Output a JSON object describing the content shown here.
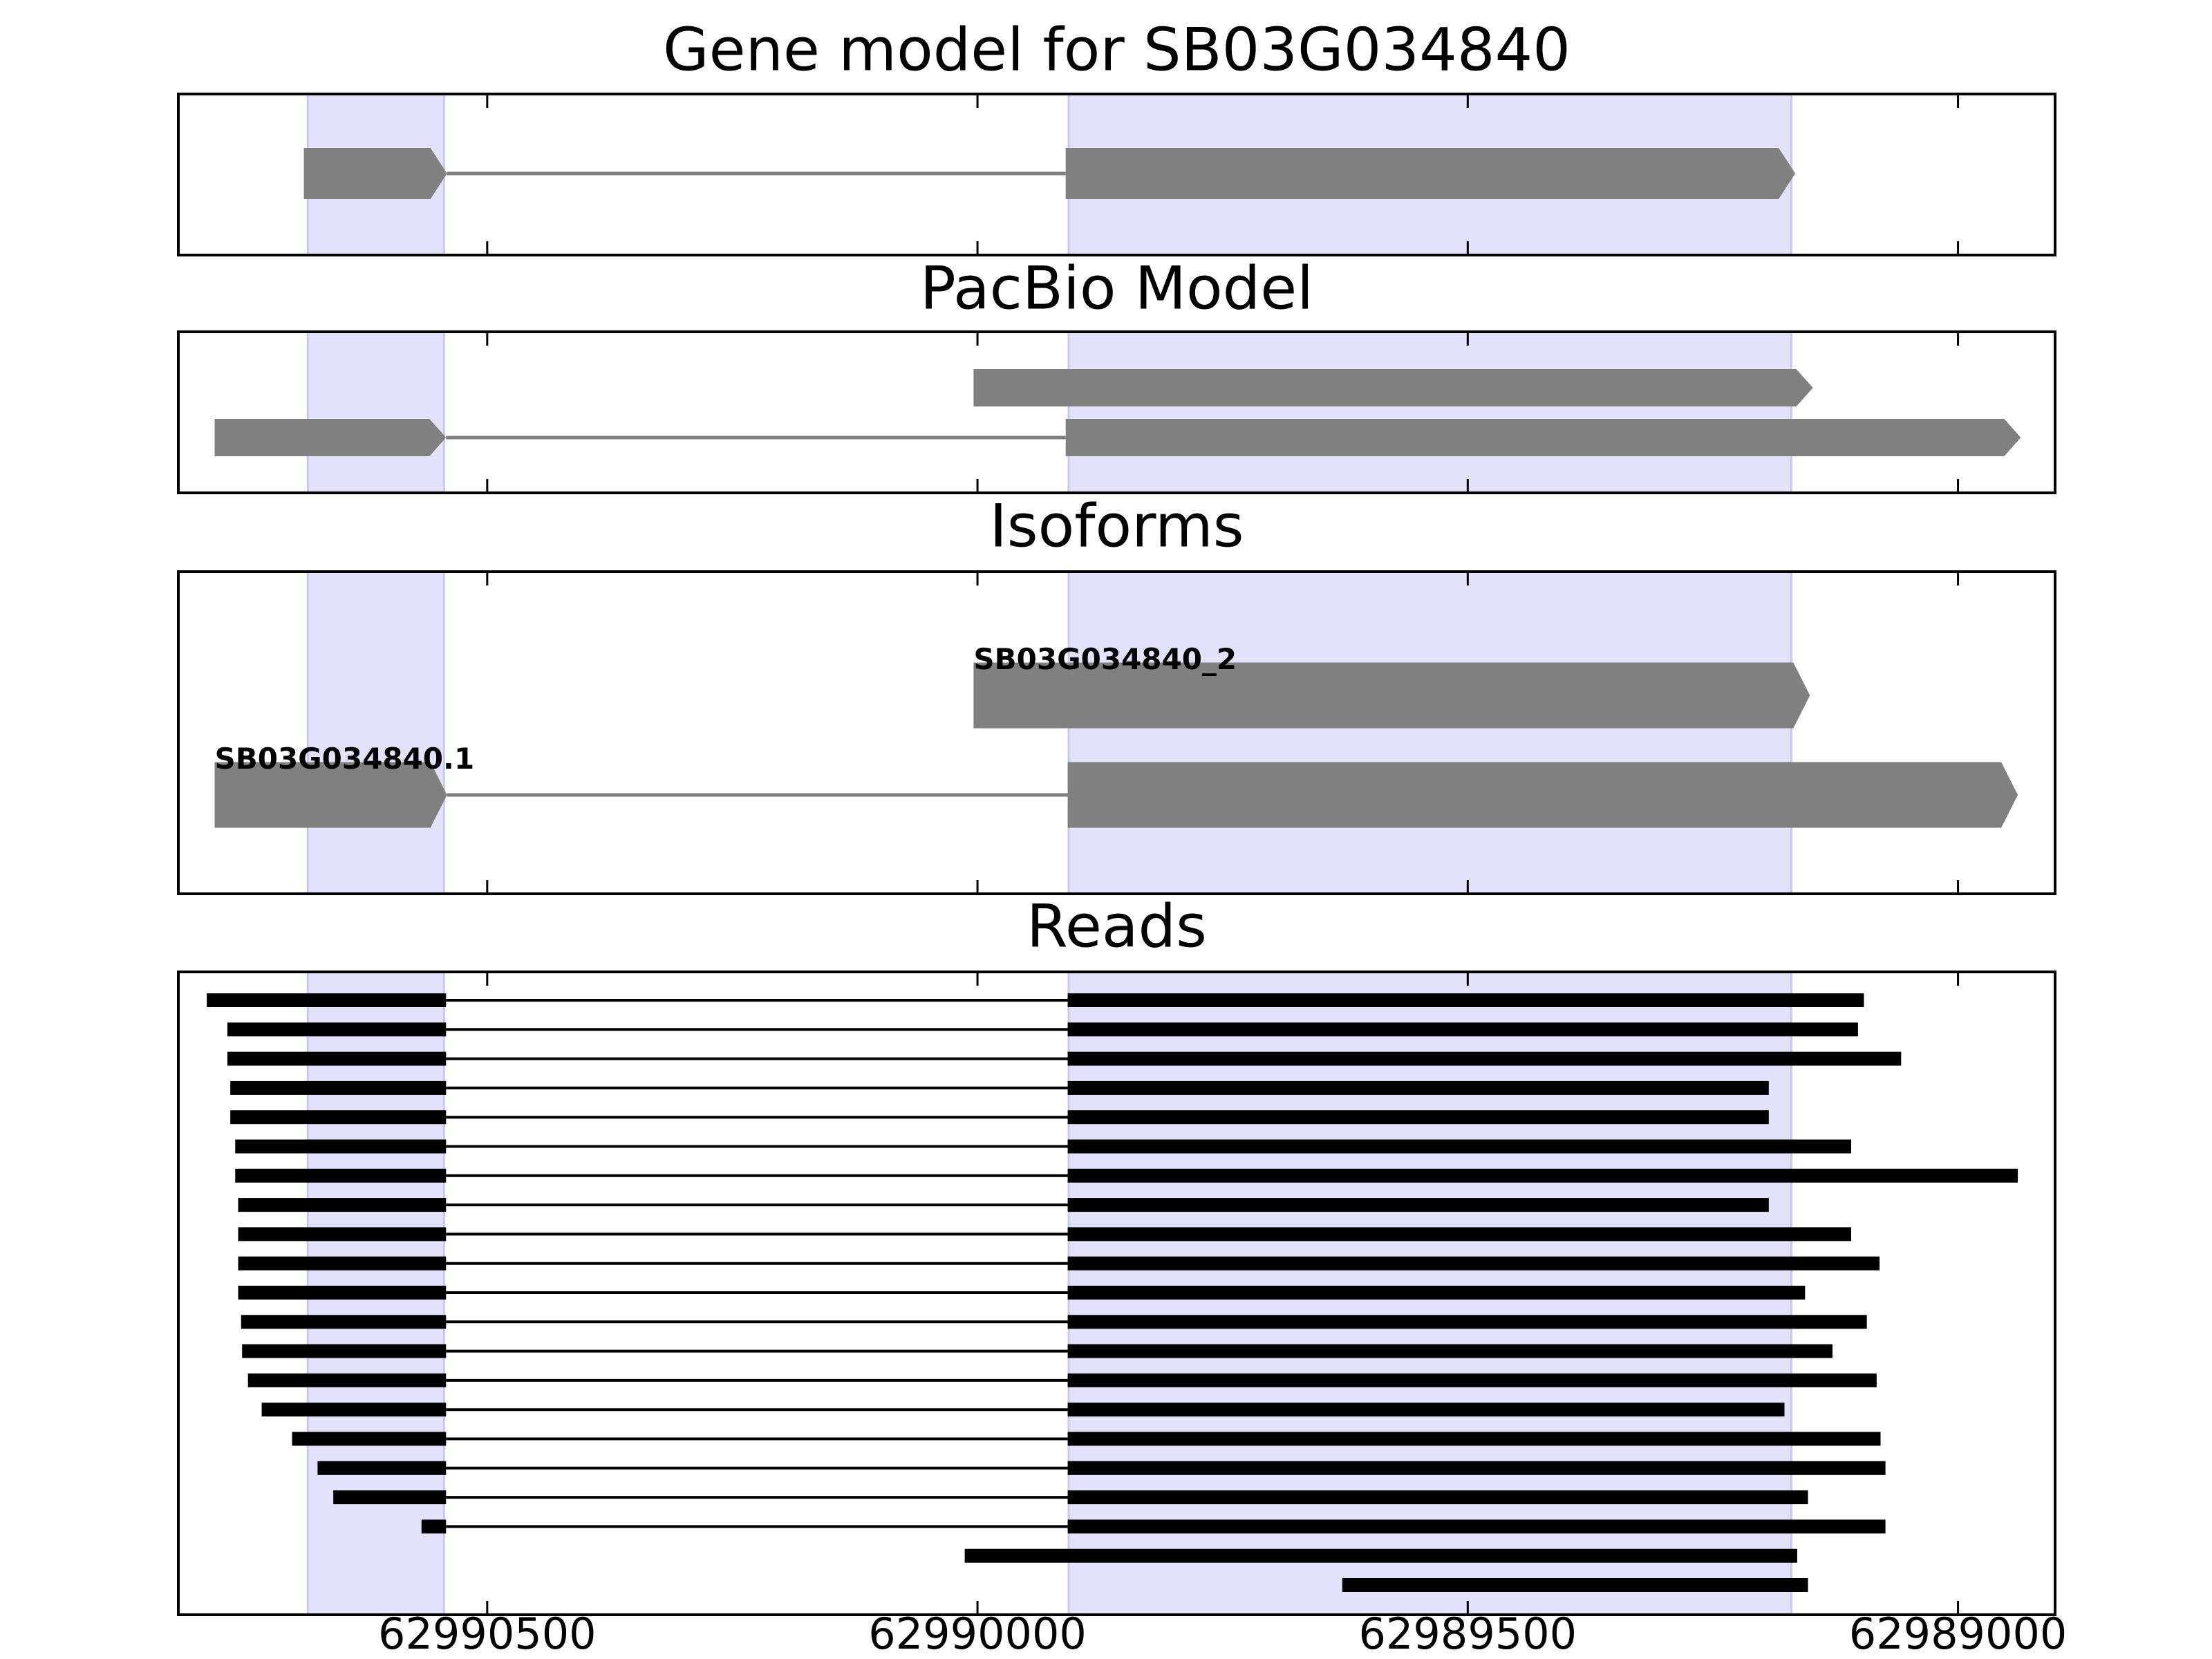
{
  "chart_data": {
    "type": "gene-tracks",
    "xlim": [
      62990815,
      62988901
    ],
    "xticks": [
      62990500,
      62990000,
      62989500,
      62989000
    ],
    "highlight_color": "#e2e2fb",
    "feature_color": "#808080",
    "read_color": "#000000",
    "highlights": [
      [
        62990683,
        62990544
      ],
      [
        62989907,
        62989170
      ]
    ],
    "panels": [
      {
        "title": "Gene model for SB03G034840",
        "type": "model",
        "features": [
          {
            "exons": [
              [
                62990687,
                62990541
              ],
              [
                62989910,
                62989166
              ]
            ]
          }
        ]
      },
      {
        "title": "PacBio Model",
        "type": "model",
        "features": [
          {
            "exons": [
              [
                62990004,
                62989148
              ]
            ]
          },
          {
            "exons": [
              [
                62990778,
                62990542
              ],
              [
                62989910,
                62988936
              ]
            ]
          }
        ]
      },
      {
        "title": "Isoforms",
        "type": "model",
        "features": [
          {
            "label": "SB03G034840_2",
            "exons": [
              [
                62990004,
                62989151
              ]
            ]
          },
          {
            "label": "SB03G034840.1",
            "exons": [
              [
                62990778,
                62990541
              ],
              [
                62989908,
                62988939
              ]
            ]
          }
        ]
      },
      {
        "title": "Reads",
        "type": "reads",
        "features": [
          {
            "exons": [
              [
                62990786,
                62990542
              ],
              [
                62989908,
                62989096
              ]
            ]
          },
          {
            "exons": [
              [
                62990765,
                62990542
              ],
              [
                62989908,
                62989102
              ]
            ]
          },
          {
            "exons": [
              [
                62990765,
                62990542
              ],
              [
                62989908,
                62989058
              ]
            ]
          },
          {
            "exons": [
              [
                62990762,
                62990542
              ],
              [
                62989908,
                62989193
              ]
            ]
          },
          {
            "exons": [
              [
                62990762,
                62990542
              ],
              [
                62989908,
                62989193
              ]
            ]
          },
          {
            "exons": [
              [
                62990757,
                62990542
              ],
              [
                62989908,
                62989109
              ]
            ]
          },
          {
            "exons": [
              [
                62990757,
                62990542
              ],
              [
                62989908,
                62988939
              ]
            ]
          },
          {
            "exons": [
              [
                62990754,
                62990542
              ],
              [
                62989908,
                62989193
              ]
            ]
          },
          {
            "exons": [
              [
                62990754,
                62990542
              ],
              [
                62989908,
                62989109
              ]
            ]
          },
          {
            "exons": [
              [
                62990754,
                62990542
              ],
              [
                62989908,
                62989080
              ]
            ]
          },
          {
            "exons": [
              [
                62990754,
                62990542
              ],
              [
                62989908,
                62989156
              ]
            ]
          },
          {
            "exons": [
              [
                62990751,
                62990542
              ],
              [
                62989908,
                62989093
              ]
            ]
          },
          {
            "exons": [
              [
                62990750,
                62990542
              ],
              [
                62989908,
                62989128
              ]
            ]
          },
          {
            "exons": [
              [
                62990744,
                62990542
              ],
              [
                62989908,
                62989083
              ]
            ]
          },
          {
            "exons": [
              [
                62990730,
                62990542
              ],
              [
                62989908,
                62989177
              ]
            ]
          },
          {
            "exons": [
              [
                62990699,
                62990542
              ],
              [
                62989908,
                62989079
              ]
            ]
          },
          {
            "exons": [
              [
                62990673,
                62990542
              ],
              [
                62989908,
                62989074
              ]
            ]
          },
          {
            "exons": [
              [
                62990657,
                62990542
              ],
              [
                62989908,
                62989153
              ]
            ]
          },
          {
            "exons": [
              [
                62990567,
                62990542
              ],
              [
                62989908,
                62989074
              ]
            ]
          },
          {
            "exons": [
              [
                62990013,
                62989164
              ]
            ]
          },
          {
            "exons": [
              [
                62989628,
                62989153
              ]
            ]
          }
        ]
      }
    ]
  }
}
